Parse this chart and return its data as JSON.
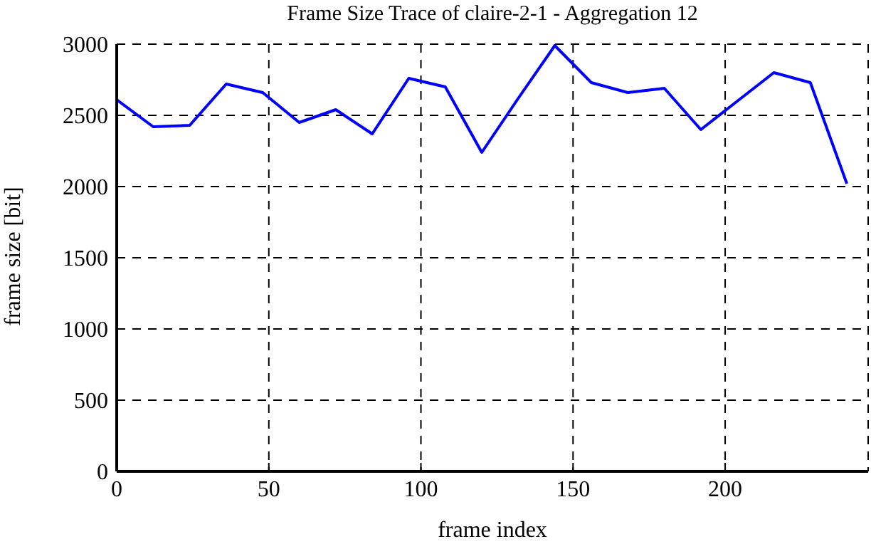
{
  "chart_data": {
    "type": "line",
    "title": "Frame Size Trace of claire-2-1 - Aggregation 12",
    "xlabel": "frame index",
    "ylabel": "frame size [bit]",
    "x": [
      0,
      12,
      24,
      36,
      48,
      60,
      72,
      84,
      96,
      108,
      120,
      132,
      144,
      156,
      168,
      180,
      192,
      204,
      216,
      228,
      240
    ],
    "series": [
      {
        "color": "#0000ff",
        "values": [
          2610,
          2420,
          2430,
          2720,
          2660,
          2450,
          2540,
          2370,
          2760,
          2700,
          2240,
          2620,
          2990,
          2730,
          2660,
          2690,
          2400,
          2600,
          2800,
          2730,
          2020
        ]
      }
    ],
    "xlim": [
      0,
      247
    ],
    "xticks": [
      0,
      50,
      100,
      150,
      200
    ],
    "ylim": [
      0,
      3000
    ],
    "yticks": [
      0,
      500,
      1000,
      1500,
      2000,
      2500,
      3000
    ],
    "grid": true,
    "legend": false,
    "marker": "none",
    "line_style": "solid"
  }
}
